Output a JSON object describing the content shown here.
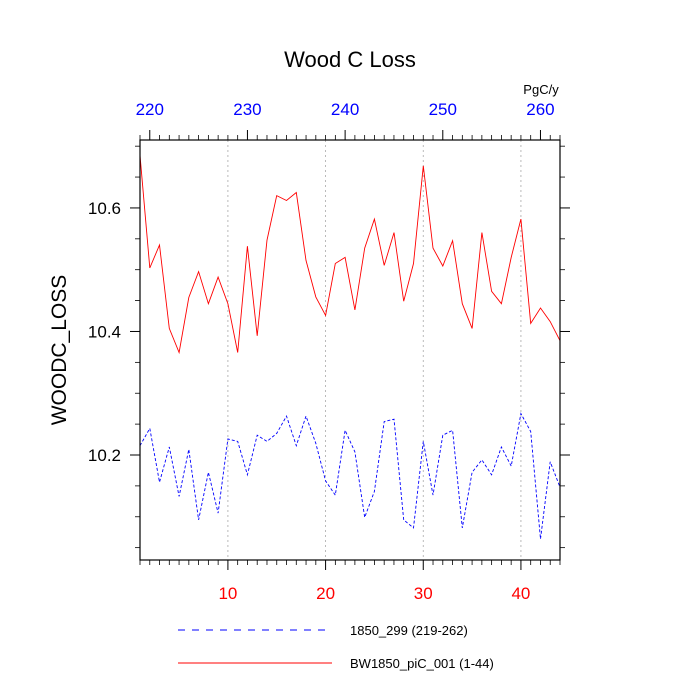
{
  "chart_data": {
    "type": "line",
    "title": "Wood C Loss",
    "ylabel": "WOODC_LOSS",
    "units": "PgC/y",
    "x_bottom": {
      "ticks": [
        10,
        20,
        30,
        40
      ],
      "range": [
        1,
        44
      ],
      "color": "#ff0000"
    },
    "x_top": {
      "ticks": [
        220,
        230,
        240,
        250,
        260
      ],
      "range": [
        219,
        262
      ],
      "color": "#0000ff"
    },
    "ylim": [
      10.03,
      10.71
    ],
    "y_ticks": [
      "10.2",
      "10.4",
      "10.6"
    ],
    "grid": "vertical dotted at major ticks",
    "legend_position": "bottom",
    "series": [
      {
        "name": "BW1850_piC_001 (1-44)",
        "color": "#ff0000",
        "dash": "solid",
        "values": [
          10.685,
          10.503,
          10.54,
          10.405,
          10.366,
          10.455,
          10.497,
          10.445,
          10.488,
          10.445,
          10.366,
          10.538,
          10.393,
          10.548,
          10.62,
          10.612,
          10.625,
          10.515,
          10.456,
          10.426,
          10.51,
          10.52,
          10.435,
          10.535,
          10.582,
          10.507,
          10.56,
          10.449,
          10.51,
          10.668,
          10.535,
          10.506,
          10.547,
          10.445,
          10.405,
          10.56,
          10.465,
          10.445,
          10.52,
          10.582,
          10.413,
          10.438,
          10.416,
          10.385
        ]
      },
      {
        "name": "1850_299 (219-262)",
        "color": "#0000ff",
        "dash": "dashed",
        "values": [
          10.215,
          10.243,
          10.156,
          10.213,
          10.133,
          10.209,
          10.095,
          10.172,
          10.106,
          10.226,
          10.222,
          10.168,
          10.232,
          10.222,
          10.235,
          10.263,
          10.215,
          10.263,
          10.219,
          10.158,
          10.135,
          10.24,
          10.205,
          10.099,
          10.141,
          10.254,
          10.258,
          10.095,
          10.082,
          10.222,
          10.135,
          10.232,
          10.24,
          10.082,
          10.172,
          10.192,
          10.168,
          10.213,
          10.182,
          10.267,
          10.238,
          10.064,
          10.189,
          10.148
        ]
      }
    ]
  }
}
